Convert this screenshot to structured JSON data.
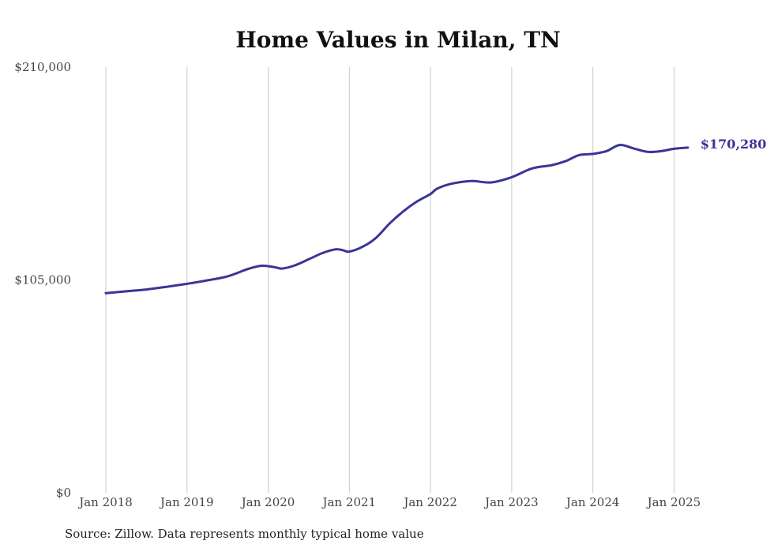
{
  "chart_data": {
    "type": "line",
    "title": "Home Values in Milan, TN",
    "xlabel": "",
    "ylabel": "",
    "ylim": [
      0,
      210000
    ],
    "y_ticks": [
      {
        "value": 0,
        "label": "$0"
      },
      {
        "value": 105000,
        "label": "$105,000"
      },
      {
        "value": 210000,
        "label": "$210,000"
      }
    ],
    "x_ticks": [
      {
        "value": 2018.0,
        "label": "Jan 2018"
      },
      {
        "value": 2019.0,
        "label": "Jan 2019"
      },
      {
        "value": 2020.0,
        "label": "Jan 2020"
      },
      {
        "value": 2021.0,
        "label": "Jan 2021"
      },
      {
        "value": 2022.0,
        "label": "Jan 2022"
      },
      {
        "value": 2023.0,
        "label": "Jan 2023"
      },
      {
        "value": 2024.0,
        "label": "Jan 2024"
      },
      {
        "value": 2025.0,
        "label": "Jan 2025"
      }
    ],
    "xlim": [
      2018.0,
      2025.2
    ],
    "grid": {
      "vertical": true,
      "horizontal": false
    },
    "line_color": "#3a3596",
    "grid_color": "#c8c8c8",
    "series": [
      {
        "end_label": "$170,280",
        "points": [
          [
            2018.0,
            98500
          ],
          [
            2018.25,
            99400
          ],
          [
            2018.5,
            100300
          ],
          [
            2018.75,
            101600
          ],
          [
            2019.0,
            103100
          ],
          [
            2019.25,
            104800
          ],
          [
            2019.5,
            106800
          ],
          [
            2019.75,
            110400
          ],
          [
            2019.92,
            112000
          ],
          [
            2020.08,
            111300
          ],
          [
            2020.17,
            110600
          ],
          [
            2020.33,
            112200
          ],
          [
            2020.5,
            115200
          ],
          [
            2020.67,
            118300
          ],
          [
            2020.83,
            120100
          ],
          [
            2020.92,
            119700
          ],
          [
            2021.0,
            119000
          ],
          [
            2021.17,
            121500
          ],
          [
            2021.33,
            125800
          ],
          [
            2021.5,
            133000
          ],
          [
            2021.67,
            139000
          ],
          [
            2021.83,
            143600
          ],
          [
            2022.0,
            147400
          ],
          [
            2022.08,
            150000
          ],
          [
            2022.25,
            152400
          ],
          [
            2022.5,
            153800
          ],
          [
            2022.75,
            153100
          ],
          [
            2023.0,
            155700
          ],
          [
            2023.25,
            160000
          ],
          [
            2023.5,
            161700
          ],
          [
            2023.67,
            163700
          ],
          [
            2023.83,
            166600
          ],
          [
            2024.0,
            167200
          ],
          [
            2024.17,
            168600
          ],
          [
            2024.33,
            171600
          ],
          [
            2024.5,
            169900
          ],
          [
            2024.67,
            168200
          ],
          [
            2024.83,
            168500
          ],
          [
            2025.0,
            169700
          ],
          [
            2025.17,
            170280
          ]
        ]
      }
    ]
  },
  "source_note": "Source: Zillow. Data represents monthly typical home value"
}
